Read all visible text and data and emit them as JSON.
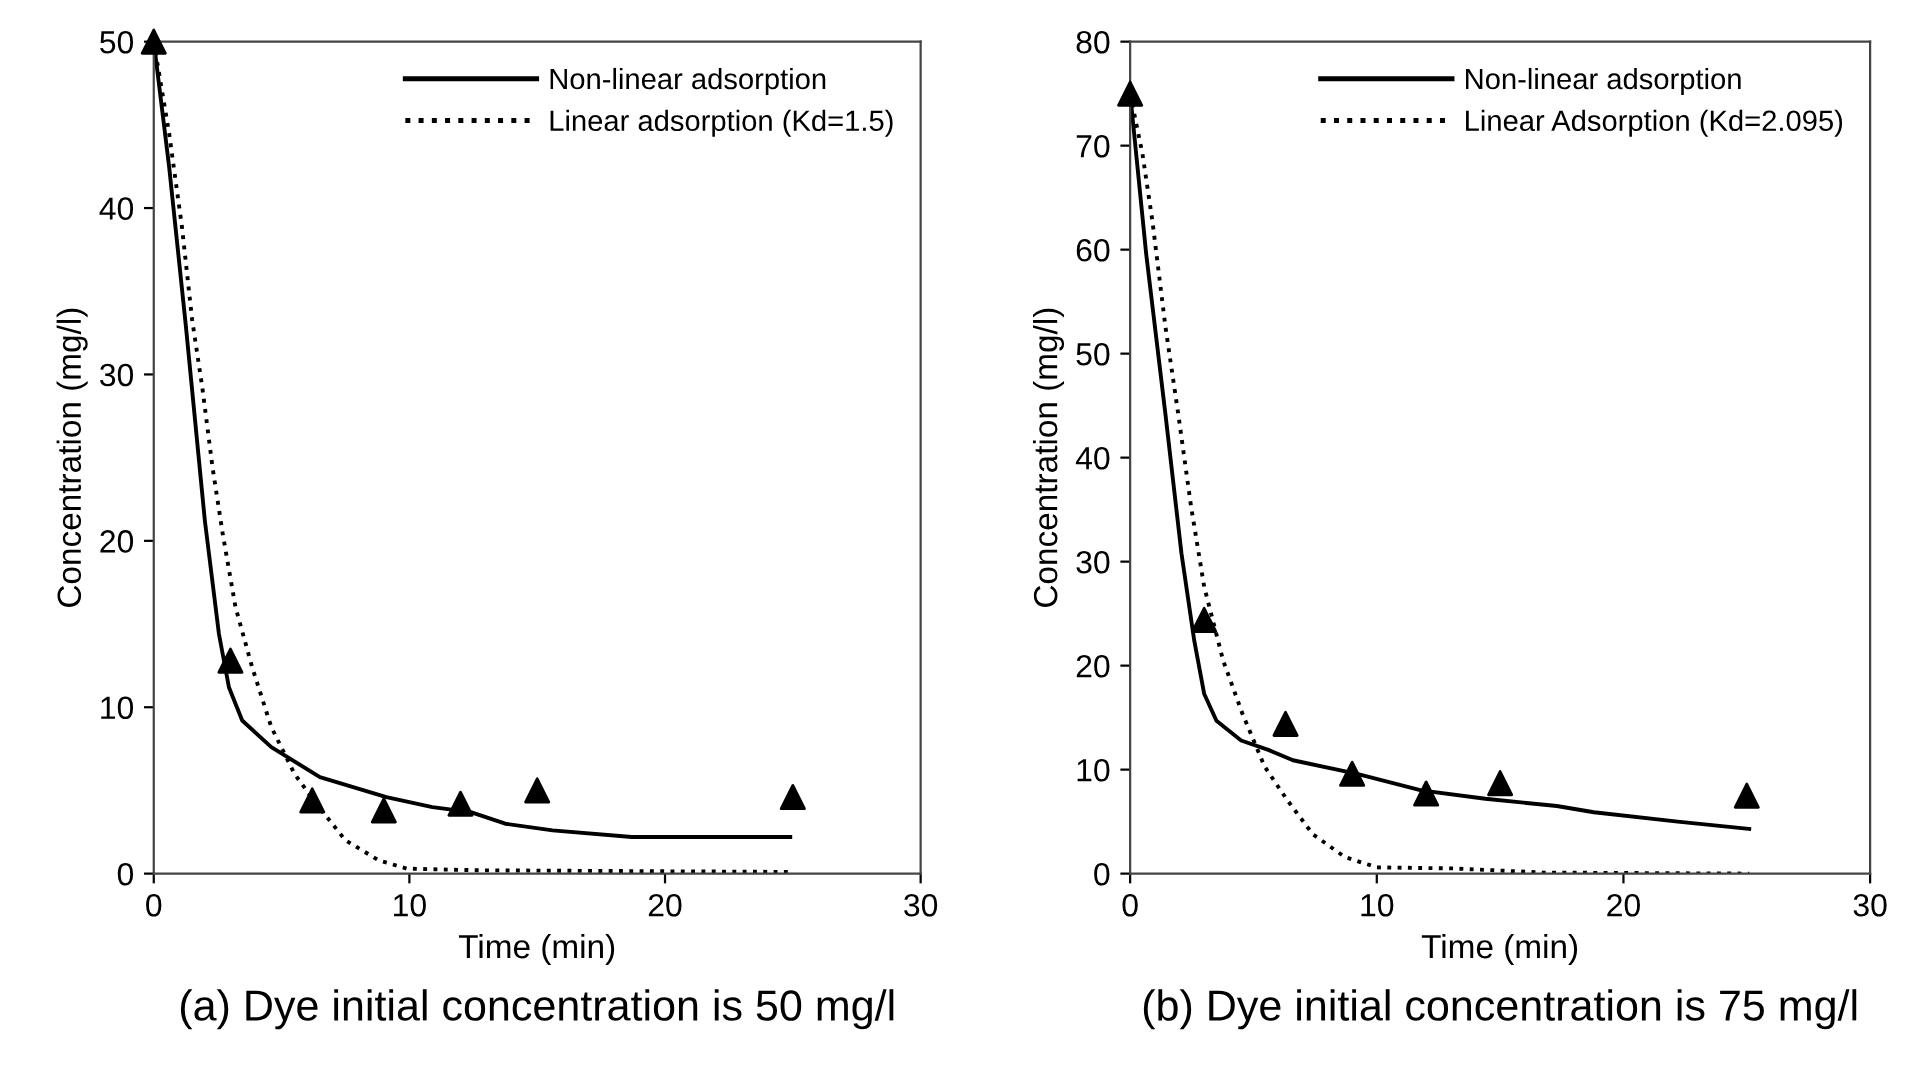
{
  "chart_data": [
    {
      "type": "line",
      "title": "(a) Dye initial concentration is 50 mg/l",
      "xlabel": "Time (min)",
      "ylabel": "Concentration (mg/l)",
      "xlim": [
        0,
        30
      ],
      "xticks": [
        0,
        10,
        20,
        30
      ],
      "ylim": [
        0,
        50
      ],
      "yticks": [
        0,
        10,
        20,
        30,
        40,
        50
      ],
      "grid": false,
      "legend": "top right",
      "series": [
        {
          "name": "Non-linear adsorption",
          "color": "#000000",
          "line_style": "solid",
          "marker": "none",
          "x": [
            0,
            0.6,
            1.25,
            2.0,
            2.55,
            2.94,
            3.46,
            4.6,
            6.5,
            9.1,
            10.9,
            12.4,
            13.75,
            15.6,
            18.7,
            24.9
          ],
          "values": [
            50,
            42.5,
            33,
            21.2,
            14.4,
            11.2,
            9.2,
            7.6,
            5.8,
            4.6,
            4.0,
            3.7,
            3.0,
            2.6,
            2.2,
            2.2
          ]
        },
        {
          "name": "Linear adsorption (Kd=1.5)",
          "color": "#000000",
          "line_style": "dotted",
          "marker": "none",
          "x": [
            0,
            0.6,
            1.1,
            1.5,
            1.9,
            2.3,
            2.7,
            3.2,
            3.85,
            4.6,
            5.5,
            6.46,
            7.5,
            8.8,
            9.9,
            12.7,
            24.9
          ],
          "values": [
            50,
            44.5,
            38.9,
            33.3,
            29.2,
            24.4,
            20.4,
            16.0,
            12.4,
            8.8,
            6.0,
            4.0,
            2.0,
            0.8,
            0.3,
            0.2,
            0.1
          ]
        },
        {
          "type": "scatter",
          "color": "#000000",
          "marker": "triangle",
          "x": [
            0,
            3,
            6.2,
            9,
            12,
            15,
            25
          ],
          "values": [
            50,
            12.8,
            4.4,
            3.8,
            4.2,
            5.0,
            4.6
          ]
        }
      ]
    },
    {
      "type": "line",
      "title": "(b) Dye initial concentration is 75 mg/l",
      "xlabel": "Time (min)",
      "ylabel": "Concentration (mg/l)",
      "xlim": [
        0,
        30
      ],
      "xticks": [
        0,
        10,
        20,
        30
      ],
      "ylim": [
        0,
        80
      ],
      "yticks": [
        0,
        10,
        20,
        30,
        40,
        50,
        60,
        70,
        80
      ],
      "grid": false,
      "legend": "top right",
      "series": [
        {
          "name": "Non-linear adsorption",
          "color": "#000000",
          "line_style": "solid",
          "marker": "none",
          "x": [
            0,
            0.65,
            1.43,
            2.08,
            2.6,
            3.0,
            3.5,
            4.5,
            5.6,
            6.6,
            9.2,
            11.8,
            14.4,
            17.3,
            18.8,
            22.2,
            25.1
          ],
          "values": [
            75,
            59.6,
            44.2,
            30.8,
            22.4,
            17.3,
            14.7,
            12.8,
            11.9,
            10.9,
            9.6,
            8.0,
            7.2,
            6.5,
            5.9,
            5.0,
            4.3
          ]
        },
        {
          "name": "Linear Adsorption (Kd=2.095)",
          "color": "#000000",
          "line_style": "dotted",
          "marker": "none",
          "x": [
            0,
            0.5,
            0.9,
            1.43,
            1.95,
            2.47,
            3.0,
            3.77,
            4.55,
            5.45,
            6.36,
            7.4,
            8.7,
            10.0,
            13.1,
            16.75,
            25.1
          ],
          "values": [
            75,
            69.2,
            62.8,
            52.6,
            44.2,
            35.3,
            27.6,
            20.5,
            15.4,
            10.3,
            7.1,
            3.8,
            1.6,
            0.6,
            0.5,
            0.1,
            0
          ]
        },
        {
          "type": "scatter",
          "color": "#000000",
          "marker": "triangle",
          "x": [
            0,
            3,
            6.3,
            9,
            12,
            15,
            25
          ],
          "values": [
            75,
            24.4,
            14.4,
            9.6,
            7.7,
            8.7,
            7.5
          ]
        }
      ]
    }
  ]
}
